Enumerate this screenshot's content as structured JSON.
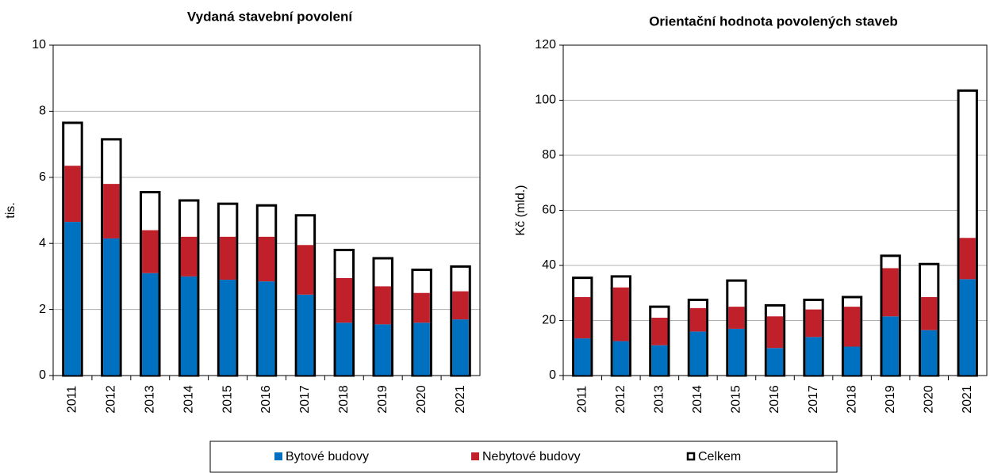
{
  "chart_data": [
    {
      "type": "bar",
      "title": "Vydaná stavební povolení",
      "y_label": "tis.",
      "categories": [
        "2011",
        "2012",
        "2013",
        "2014",
        "2015",
        "2016",
        "2017",
        "2018",
        "2019",
        "2020",
        "2021"
      ],
      "series": [
        {
          "name": "Bytové budovy",
          "color": "#0070c0",
          "values": [
            4.65,
            4.15,
            3.1,
            3.0,
            2.9,
            2.85,
            2.45,
            1.6,
            1.55,
            1.6,
            1.7
          ]
        },
        {
          "name": "Nebytové budovy",
          "color": "#c0202a",
          "values": [
            1.7,
            1.65,
            1.3,
            1.2,
            1.3,
            1.35,
            1.5,
            1.35,
            1.15,
            0.9,
            0.85
          ]
        },
        {
          "name": "Celkem",
          "color": "#000000",
          "values": [
            7.65,
            7.15,
            5.55,
            5.3,
            5.2,
            5.15,
            4.85,
            3.8,
            3.55,
            3.2,
            3.3
          ]
        }
      ],
      "ylim": [
        0,
        10
      ],
      "yticks": [
        0,
        2,
        4,
        6,
        8,
        10
      ],
      "grid": true
    },
    {
      "type": "bar",
      "title": "Orientační hodnota povolených staveb",
      "y_label": "Kč (mld.)",
      "categories": [
        "2011",
        "2012",
        "2013",
        "2014",
        "2015",
        "2016",
        "2017",
        "2018",
        "2019",
        "2020",
        "2021"
      ],
      "series": [
        {
          "name": "Bytové budovy",
          "color": "#0070c0",
          "values": [
            13.5,
            12.5,
            11,
            16,
            17,
            10,
            14,
            10.5,
            21.5,
            16.5,
            35
          ]
        },
        {
          "name": "Nebytové budovy",
          "color": "#c0202a",
          "values": [
            15,
            19.5,
            10,
            8.5,
            8,
            11.5,
            10,
            14.5,
            17.5,
            12,
            15
          ]
        },
        {
          "name": "Celkem",
          "color": "#000000",
          "values": [
            35.5,
            36,
            25,
            27.5,
            34.5,
            25.5,
            27.5,
            28.5,
            43.5,
            40.5,
            103.5
          ]
        }
      ],
      "ylim": [
        0,
        120
      ],
      "yticks": [
        0,
        20,
        40,
        60,
        80,
        100,
        120
      ],
      "grid": true
    }
  ]
}
